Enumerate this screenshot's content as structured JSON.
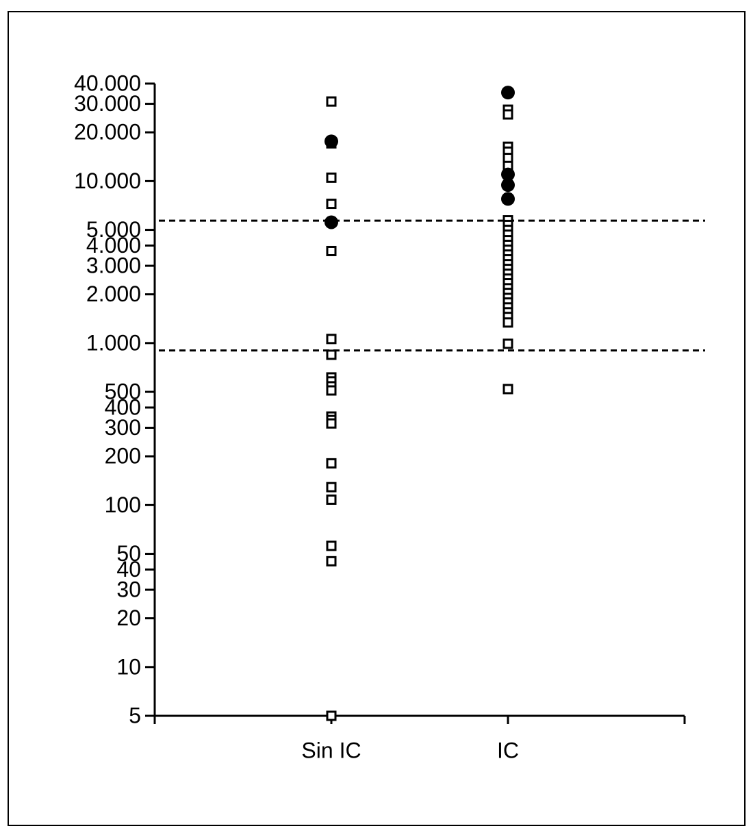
{
  "chart_data": {
    "type": "dotplot",
    "categories": [
      "Sin IC",
      "IC"
    ],
    "log_scale": true,
    "ylim": [
      5,
      40000
    ],
    "yticks": [
      5,
      10,
      20,
      30,
      40,
      50,
      100,
      200,
      300,
      400,
      500,
      {
        "value": 1000,
        "label": "1.000"
      },
      {
        "value": 2000,
        "label": "2.000"
      },
      {
        "value": 3000,
        "label": "3.000"
      },
      {
        "value": 4000,
        "label": "4.000"
      },
      {
        "value": 5000,
        "label": "5.000"
      },
      {
        "value": 10000,
        "label": "10.000"
      },
      {
        "value": 20000,
        "label": "20.000"
      },
      {
        "value": 30000,
        "label": "30.000"
      },
      {
        "value": 40000,
        "label": "40.000"
      }
    ],
    "reference_lines": [
      5700,
      900
    ],
    "series": [
      {
        "marker": "square",
        "color": "#000000",
        "x": [
          "Sin IC",
          "Sin IC",
          "Sin IC",
          "Sin IC",
          "Sin IC",
          "Sin IC",
          "Sin IC",
          "Sin IC",
          "Sin IC",
          "Sin IC",
          "Sin IC",
          "Sin IC",
          "Sin IC",
          "Sin IC",
          "Sin IC",
          "Sin IC",
          "Sin IC",
          "Sin IC",
          "Sin IC",
          "Sin IC",
          "IC",
          "IC",
          "IC",
          "IC",
          "IC",
          "IC",
          "IC",
          "IC",
          "IC",
          "IC",
          "IC",
          "IC",
          "IC",
          "IC",
          "IC",
          "IC",
          "IC",
          "IC",
          "IC",
          "IC",
          "IC",
          "IC",
          "IC",
          "IC",
          "IC",
          "IC",
          "IC",
          "IC",
          "IC",
          "IC"
        ],
        "values": [
          31000,
          17100,
          10500,
          7240,
          3700,
          1060,
          847,
          614,
          580,
          541,
          510,
          352,
          335,
          319,
          181,
          129,
          108,
          56,
          45,
          5,
          27600,
          25800,
          16300,
          15200,
          13900,
          12400,
          5730,
          5360,
          5000,
          4670,
          4320,
          4040,
          3770,
          3520,
          3290,
          3070,
          2870,
          2680,
          2500,
          2340,
          2180,
          2040,
          1900,
          1780,
          1660,
          1550,
          1450,
          1340,
          990,
          520
        ]
      },
      {
        "marker": "circle",
        "color": "#000000",
        "x": [
          "Sin IC",
          "Sin IC",
          "IC",
          "IC",
          "IC",
          "IC"
        ],
        "values": [
          17600,
          5570,
          35200,
          11000,
          9450,
          7760
        ]
      }
    ]
  }
}
